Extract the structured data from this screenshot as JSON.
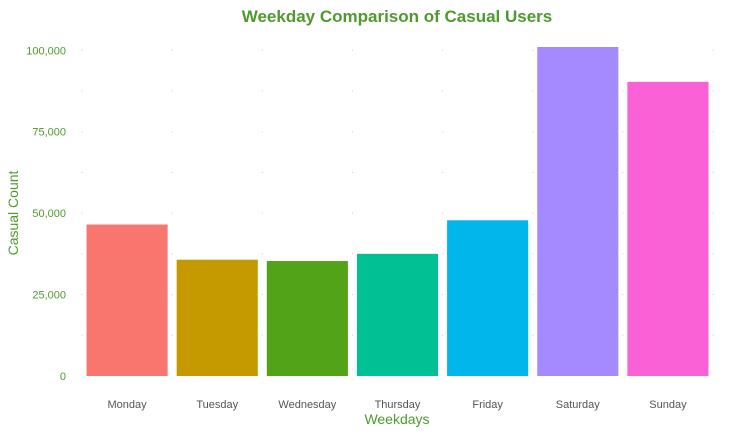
{
  "chart_data": {
    "type": "bar",
    "title": "Weekday Comparison of Casual Users",
    "xlabel": "Weekdays",
    "ylabel": "Casual Count",
    "categories": [
      "Monday",
      "Tuesday",
      "Wednesday",
      "Thursday",
      "Friday",
      "Saturday",
      "Sunday"
    ],
    "values": [
      46500,
      35700,
      35300,
      37500,
      47800,
      101000,
      90300
    ],
    "colors": [
      "#F8766D",
      "#C49A00",
      "#53A318",
      "#00C094",
      "#00B6EB",
      "#A58AFF",
      "#FB61D7"
    ],
    "ylim": [
      0,
      101000
    ],
    "yticks": [
      0,
      25000,
      50000,
      75000,
      100000
    ],
    "ytick_labels": [
      "0",
      "25,000",
      "50,000",
      "75,000",
      "100,000"
    ],
    "grid": "dotted",
    "legend": "none",
    "title_color": "#4E9A2E"
  }
}
